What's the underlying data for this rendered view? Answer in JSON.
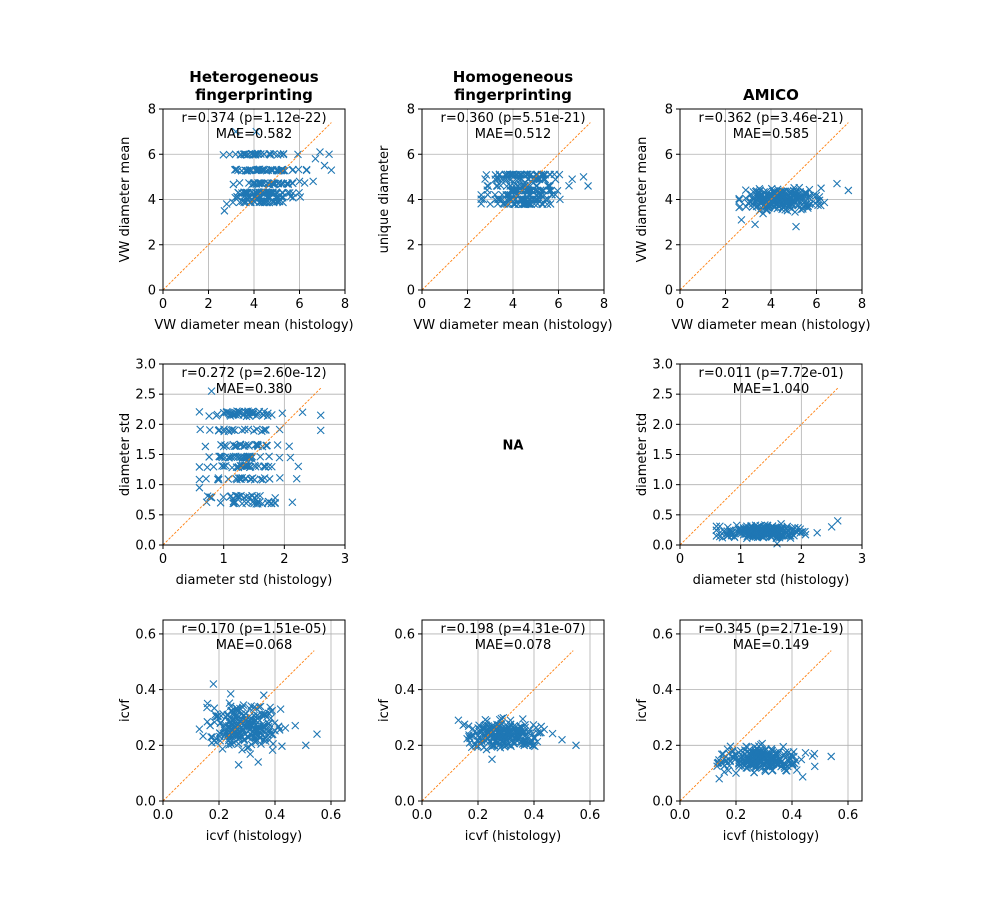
{
  "colors": {
    "points": "#1f77b4",
    "identity_line": "#ff7f0e",
    "grid": "#b0b0b0"
  },
  "column_titles": [
    [
      "Heterogeneous",
      "fingerprinting"
    ],
    [
      "Homogeneous",
      "fingerprinting"
    ],
    [
      "AMICO"
    ]
  ],
  "na_label": "NA",
  "chart_data": [
    {
      "id": "mean-het",
      "type": "scatter",
      "row": 0,
      "col": 0,
      "xlabel": "VW diameter mean (histology)",
      "ylabel": "VW diameter mean",
      "xlim": [
        0,
        8
      ],
      "ylim": [
        0,
        8
      ],
      "xticks": [
        "0",
        "2",
        "4",
        "6",
        "8"
      ],
      "yticks": [
        "0",
        "2",
        "4",
        "6",
        "8"
      ],
      "stats": "r=0.374 (p=1.12e-22)",
      "mae": "MAE=0.582",
      "identity_line": [
        0,
        7.4
      ],
      "grid": true,
      "marker": "x",
      "points_summary": {
        "n": 240,
        "x_range": [
          2.6,
          7.4
        ],
        "y_levels": [
          3.9,
          4.1,
          4.3,
          4.7,
          5.3,
          6.0
        ],
        "y_range": [
          3.4,
          7.0
        ]
      },
      "points": [
        [
          4.1,
          7.0
        ],
        [
          3.2,
          7.0
        ],
        [
          2.7,
          3.5
        ],
        [
          2.8,
          3.8
        ],
        [
          6.0,
          4.8
        ],
        [
          6.6,
          4.8
        ],
        [
          7.1,
          5.5
        ],
        [
          7.3,
          6.0
        ],
        [
          6.7,
          5.8
        ],
        [
          7.4,
          5.3
        ],
        [
          6.9,
          6.1
        ]
      ]
    },
    {
      "id": "mean-hom",
      "type": "scatter",
      "row": 0,
      "col": 1,
      "xlabel": "VW diameter mean (histology)",
      "ylabel": "unique diameter",
      "xlim": [
        0,
        8
      ],
      "ylim": [
        0,
        8
      ],
      "xticks": [
        "0",
        "2",
        "4",
        "6",
        "8"
      ],
      "yticks": [
        "0",
        "2",
        "4",
        "6",
        "8"
      ],
      "stats": "r=0.360 (p=5.51e-21)",
      "mae": "MAE=0.512",
      "identity_line": [
        0,
        7.4
      ],
      "grid": true,
      "marker": "x",
      "points_summary": {
        "n": 240,
        "x_range": [
          2.6,
          7.4
        ],
        "y_levels": [
          3.8,
          4.0,
          4.2,
          4.4,
          4.6,
          4.9,
          5.1
        ],
        "y_range": [
          3.7,
          5.2
        ]
      },
      "points": [
        [
          7.3,
          4.6
        ],
        [
          7.1,
          5.0
        ],
        [
          6.6,
          4.9
        ],
        [
          2.7,
          4.0
        ],
        [
          3.0,
          3.8
        ]
      ]
    },
    {
      "id": "mean-amico",
      "type": "scatter",
      "row": 0,
      "col": 2,
      "xlabel": "VW diameter mean (histology)",
      "ylabel": "VW diameter mean",
      "xlim": [
        0,
        8
      ],
      "ylim": [
        0,
        8
      ],
      "xticks": [
        "0",
        "2",
        "4",
        "6",
        "8"
      ],
      "yticks": [
        "0",
        "2",
        "4",
        "6",
        "8"
      ],
      "stats": "r=0.362 (p=3.46e-21)",
      "mae": "MAE=0.585",
      "identity_line": [
        0,
        7.4
      ],
      "grid": true,
      "marker": "x",
      "points_summary": {
        "n": 240,
        "x_range": [
          2.6,
          7.4
        ],
        "y_center": 4.0,
        "y_range": [
          2.8,
          4.7
        ]
      },
      "points": [
        [
          5.1,
          2.8
        ],
        [
          3.3,
          2.9
        ],
        [
          2.7,
          3.1
        ],
        [
          6.9,
          4.7
        ],
        [
          7.4,
          4.4
        ],
        [
          6.2,
          4.5
        ]
      ]
    },
    {
      "id": "std-het",
      "type": "scatter",
      "row": 1,
      "col": 0,
      "xlabel": "diameter std (histology)",
      "ylabel": "diameter std",
      "xlim": [
        0,
        3
      ],
      "ylim": [
        0,
        3
      ],
      "xticks": [
        "0",
        "1",
        "2",
        "3"
      ],
      "yticks": [
        "0.0",
        "0.5",
        "1.0",
        "1.5",
        "2.0",
        "2.5",
        "3.0"
      ],
      "stats": "r=0.272 (p=2.60e-12)",
      "mae": "MAE=0.380",
      "identity_line": [
        0,
        2.6
      ],
      "grid": true,
      "marker": "x",
      "points_summary": {
        "n": 240,
        "x_range": [
          0.6,
          2.6
        ],
        "y_levels": [
          0.7,
          0.8,
          1.1,
          1.3,
          1.45,
          1.65,
          1.9,
          2.15,
          2.2
        ],
        "y_range": [
          0.65,
          2.55
        ]
      },
      "points": [
        [
          0.8,
          2.55
        ],
        [
          0.6,
          0.95
        ],
        [
          2.3,
          2.2
        ],
        [
          2.6,
          2.15
        ],
        [
          2.6,
          1.9
        ],
        [
          2.1,
          1.45
        ]
      ]
    },
    {
      "id": "std-amico",
      "type": "scatter",
      "row": 1,
      "col": 2,
      "xlabel": "diameter std (histology)",
      "ylabel": "diameter std",
      "xlim": [
        0,
        3
      ],
      "ylim": [
        0,
        3
      ],
      "xticks": [
        "0",
        "1",
        "2",
        "3"
      ],
      "yticks": [
        "0.0",
        "0.5",
        "1.0",
        "1.5",
        "2.0",
        "2.5",
        "3.0"
      ],
      "stats": "r=0.011 (p=7.72e-01)",
      "mae": "MAE=1.040",
      "identity_line": [
        0,
        2.6
      ],
      "grid": true,
      "marker": "x",
      "points_summary": {
        "n": 240,
        "x_range": [
          0.6,
          2.6
        ],
        "y_center": 0.22,
        "y_range": [
          0.02,
          0.4
        ]
      },
      "points": [
        [
          2.6,
          0.4
        ],
        [
          2.5,
          0.3
        ],
        [
          0.6,
          0.15
        ],
        [
          1.6,
          0.02
        ]
      ]
    },
    {
      "id": "icvf-het",
      "type": "scatter",
      "row": 2,
      "col": 0,
      "xlabel": "icvf (histology)",
      "ylabel": "icvf",
      "xlim": [
        0,
        0.65
      ],
      "ylim": [
        0,
        0.65
      ],
      "xticks": [
        "0.0",
        "0.2",
        "0.4",
        "0.6"
      ],
      "yticks": [
        "0.0",
        "0.2",
        "0.4",
        "0.6"
      ],
      "stats": "r=0.170 (p=1.51e-05)",
      "mae": "MAE=0.068",
      "identity_line": [
        0,
        0.54
      ],
      "grid": true,
      "marker": "x",
      "points_summary": {
        "n": 240,
        "x_range": [
          0.13,
          0.55
        ],
        "y_center": 0.27,
        "y_range": [
          0.13,
          0.42
        ]
      },
      "points": [
        [
          0.18,
          0.42
        ],
        [
          0.36,
          0.38
        ],
        [
          0.42,
          0.33
        ],
        [
          0.55,
          0.24
        ],
        [
          0.51,
          0.2
        ],
        [
          0.34,
          0.14
        ],
        [
          0.27,
          0.13
        ]
      ]
    },
    {
      "id": "icvf-hom",
      "type": "scatter",
      "row": 2,
      "col": 1,
      "xlabel": "icvf (histology)",
      "ylabel": "icvf",
      "xlim": [
        0,
        0.65
      ],
      "ylim": [
        0,
        0.65
      ],
      "xticks": [
        "0.0",
        "0.2",
        "0.4",
        "0.6"
      ],
      "yticks": [
        "0.0",
        "0.2",
        "0.4",
        "0.6"
      ],
      "stats": "r=0.198 (p=4.31e-07)",
      "mae": "MAE=0.078",
      "identity_line": [
        0,
        0.54
      ],
      "grid": true,
      "marker": "x",
      "points_summary": {
        "n": 240,
        "x_range": [
          0.13,
          0.55
        ],
        "y_center": 0.24,
        "y_range": [
          0.15,
          0.33
        ]
      },
      "points": [
        [
          0.55,
          0.2
        ],
        [
          0.5,
          0.22
        ],
        [
          0.25,
          0.15
        ],
        [
          0.13,
          0.29
        ]
      ]
    },
    {
      "id": "icvf-amico",
      "type": "scatter",
      "row": 2,
      "col": 2,
      "xlabel": "icvf (histology)",
      "ylabel": "icvf",
      "xlim": [
        0,
        0.65
      ],
      "ylim": [
        0,
        0.65
      ],
      "xticks": [
        "0.0",
        "0.2",
        "0.4",
        "0.6"
      ],
      "yticks": [
        "0.0",
        "0.2",
        "0.4",
        "0.6"
      ],
      "stats": "r=0.345 (p=2.71e-19)",
      "mae": "MAE=0.149",
      "identity_line": [
        0,
        0.54
      ],
      "grid": true,
      "marker": "x",
      "points_summary": {
        "n": 240,
        "x_range": [
          0.13,
          0.54
        ],
        "y_center": 0.15,
        "y_range": [
          0.07,
          0.22
        ]
      },
      "points": [
        [
          0.54,
          0.16
        ],
        [
          0.14,
          0.08
        ],
        [
          0.48,
          0.17
        ],
        [
          0.2,
          0.1
        ]
      ]
    }
  ]
}
